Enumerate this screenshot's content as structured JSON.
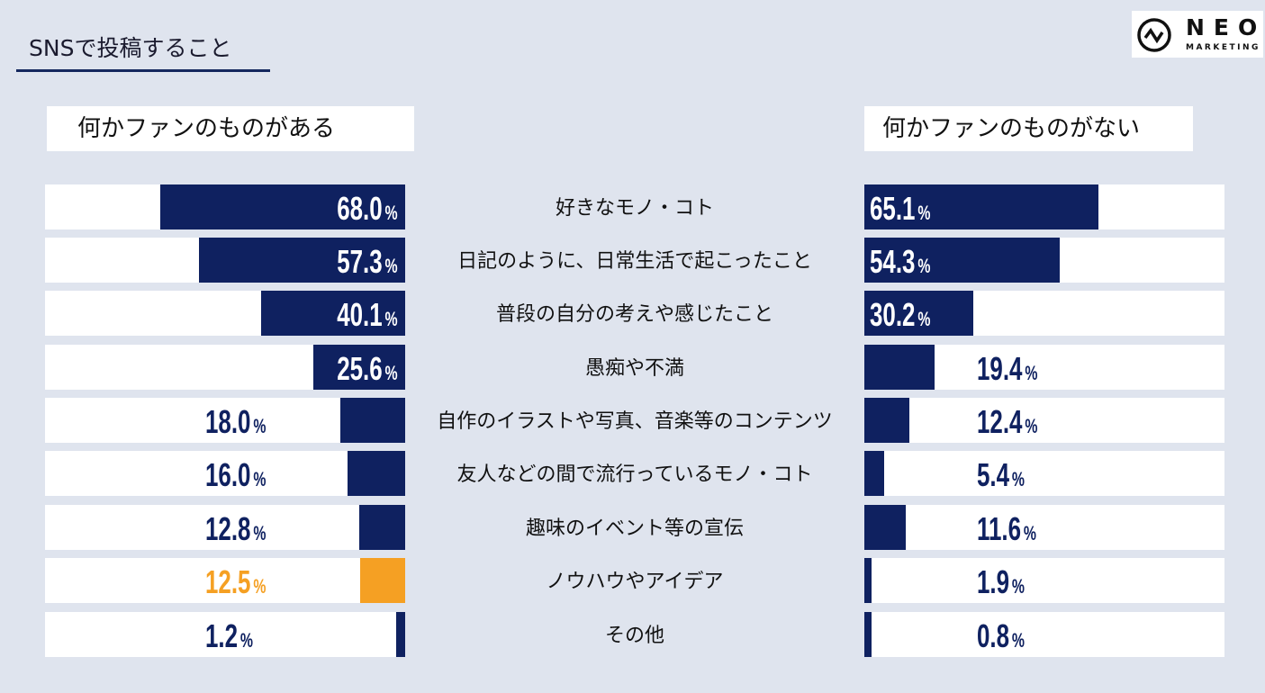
{
  "title": "SNSで投稿すること",
  "logo": {
    "name": "NEO",
    "sub": "MARKETING"
  },
  "colors": {
    "navy": "#0f2160",
    "highlight": "#f5a023",
    "background": "#dfe4ee"
  },
  "chart_data": {
    "type": "bar",
    "orientation": "horizontal-butterfly",
    "title": "SNSで投稿すること",
    "unit": "%",
    "categories": [
      "好きなモノ・コト",
      "日記のように、日常生活で起こったこと",
      "普段の自分の考えや感じたこと",
      "愚痴や不満",
      "自作のイラストや写真、音楽等のコンテンツ",
      "友人などの間で流行っているモノ・コト",
      "趣味のイベント等の宣伝",
      "ノウハウやアイデア",
      "その他"
    ],
    "xlim": [
      0,
      100
    ],
    "series": [
      {
        "name": "何かファンのものがある",
        "values": [
          68.0,
          57.3,
          40.1,
          25.6,
          18.0,
          16.0,
          12.8,
          12.5,
          1.2
        ],
        "labels": [
          "68.0",
          "57.3",
          "40.1",
          "25.6",
          "18.0",
          "16.0",
          "12.8",
          "12.5",
          "1.2"
        ],
        "highlight_index": 7
      },
      {
        "name": "何かファンのものがない",
        "values": [
          65.1,
          54.3,
          30.2,
          19.4,
          12.4,
          5.4,
          11.6,
          1.9,
          0.8
        ],
        "labels": [
          "65.1",
          "54.3",
          "30.2",
          "19.4",
          "12.4",
          "5.4",
          "11.6",
          "1.9",
          "0.8"
        ]
      }
    ]
  }
}
